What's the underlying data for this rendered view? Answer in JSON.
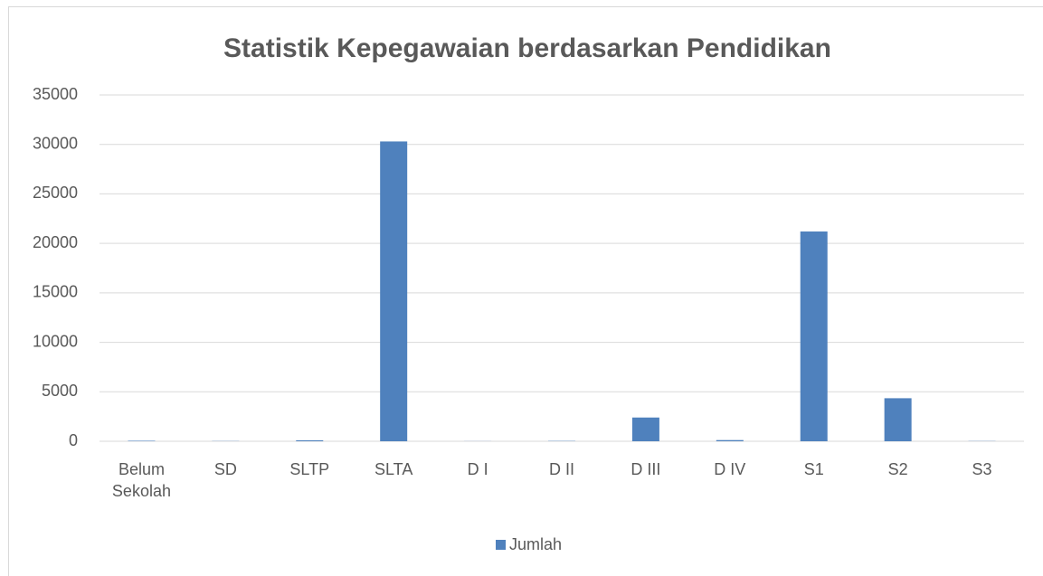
{
  "chart_data": {
    "type": "bar",
    "title": "Statistik Kepegawaian berdasarkan Pendidikan",
    "categories": [
      "Belum Sekolah",
      "SD",
      "SLTP",
      "SLTA",
      "D I",
      "D II",
      "D III",
      "D IV",
      "S1",
      "S2",
      "S3"
    ],
    "series": [
      {
        "name": "Jumlah",
        "color": "#4f81bd",
        "values": [
          50,
          20,
          100,
          30300,
          10,
          30,
          2400,
          120,
          21200,
          4350,
          20
        ]
      }
    ],
    "ylim": [
      0,
      35000
    ],
    "yticks": [
      0,
      5000,
      10000,
      15000,
      20000,
      25000,
      30000,
      35000
    ],
    "grid": true,
    "legend": "bottom"
  }
}
